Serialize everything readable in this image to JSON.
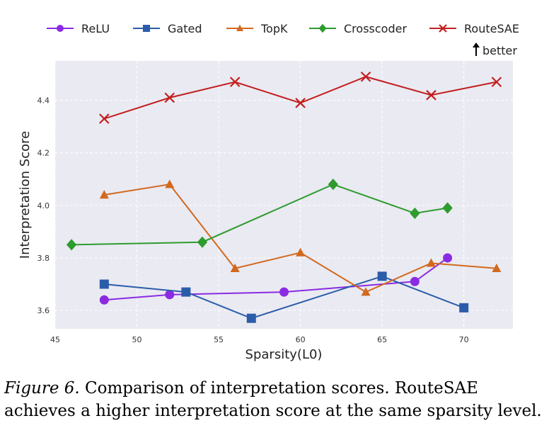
{
  "chart_data": {
    "type": "line",
    "xlabel": "Sparsity(L0)",
    "ylabel": "Interpretation Score",
    "xlim": [
      45,
      73
    ],
    "ylim": [
      3.53,
      4.55
    ],
    "xticks": [
      45,
      50,
      55,
      60,
      65,
      70
    ],
    "yticks": [
      3.6,
      3.8,
      4.0,
      4.2,
      4.4
    ],
    "grid": true,
    "legend_position": "top",
    "annotation": "better",
    "series": [
      {
        "name": "ReLU",
        "color": "#8a2be2",
        "marker": "circle",
        "x": [
          48,
          52,
          59,
          67,
          69
        ],
        "y": [
          3.64,
          3.66,
          3.67,
          3.71,
          3.8
        ]
      },
      {
        "name": "Gated",
        "color": "#2a5caa",
        "marker": "square",
        "x": [
          48,
          53,
          57,
          65,
          70
        ],
        "y": [
          3.7,
          3.67,
          3.57,
          3.73,
          3.61
        ]
      },
      {
        "name": "TopK",
        "color": "#d2691e",
        "marker": "triangle",
        "x": [
          48,
          52,
          56,
          60,
          64,
          68,
          72
        ],
        "y": [
          4.04,
          4.08,
          3.76,
          3.82,
          3.67,
          3.78,
          3.76
        ]
      },
      {
        "name": "Crosscoder",
        "color": "#2e9b2e",
        "marker": "diamond",
        "x": [
          46,
          54,
          62,
          67,
          69
        ],
        "y": [
          3.85,
          3.86,
          4.08,
          3.97,
          3.99
        ]
      },
      {
        "name": "RouteSAE",
        "color": "#c21f1f",
        "marker": "x",
        "x": [
          48,
          52,
          56,
          60,
          64,
          68,
          72
        ],
        "y": [
          4.33,
          4.41,
          4.47,
          4.39,
          4.49,
          4.42,
          4.47
        ]
      }
    ]
  },
  "caption": {
    "figure_label": "Figure 6.",
    "text": " Comparison of interpretation scores. RouteSAE achieves a higher interpretation score at the same sparsity level."
  }
}
